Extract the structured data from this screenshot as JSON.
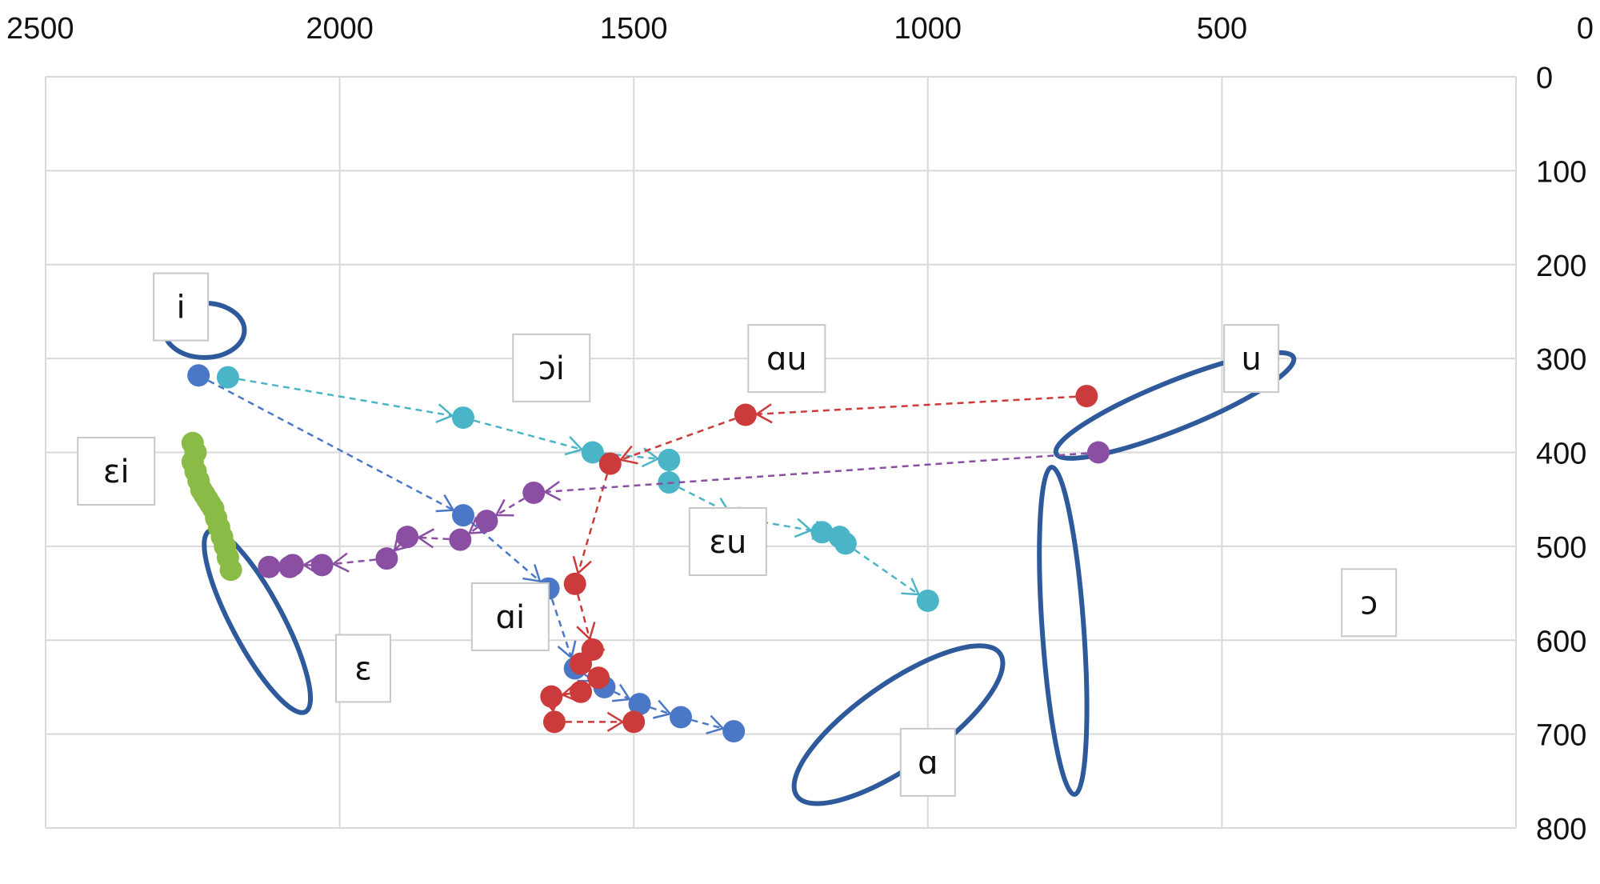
{
  "chart_data": {
    "type": "scatter",
    "title": "",
    "xlabel": "",
    "ylabel": "",
    "x_axis": {
      "position": "top",
      "reversed": true,
      "range": [
        0,
        2500
      ],
      "ticks": [
        2500,
        2000,
        1500,
        1000,
        500,
        0
      ]
    },
    "y_axis": {
      "position": "right",
      "reversed": true,
      "range": [
        0,
        800
      ],
      "ticks": [
        0,
        100,
        200,
        300,
        400,
        500,
        600,
        700,
        800
      ]
    },
    "grid": true,
    "legend": "none",
    "colors": {
      "ellipse": "#2e5a9c",
      "iE": "#8bbb47",
      "io": "#4bb5c8",
      "ia": "#4a78c7",
      "ua": "#cc3b3b",
      "uE": "#8a4fa3"
    },
    "vowel_targets": [
      {
        "name": "i",
        "x": 2230,
        "y": 270
      },
      {
        "name": "u",
        "x": 580,
        "y": 350
      },
      {
        "name": "ɛ",
        "x": 2140,
        "y": 580
      },
      {
        "name": "ɔ",
        "x": 770,
        "y": 590
      },
      {
        "name": "ɑ",
        "x": 1050,
        "y": 690
      }
    ],
    "labels": [
      {
        "text": "i",
        "x": 2270,
        "y": 245
      },
      {
        "text": "ɔi",
        "x": 1640,
        "y": 310
      },
      {
        "text": "ɑu",
        "x": 1240,
        "y": 300
      },
      {
        "text": "u",
        "x": 450,
        "y": 300
      },
      {
        "text": "ɛi",
        "x": 2380,
        "y": 420
      },
      {
        "text": "ɛu",
        "x": 1340,
        "y": 495
      },
      {
        "text": "ɔ",
        "x": 250,
        "y": 560
      },
      {
        "text": "ɑi",
        "x": 1710,
        "y": 575
      },
      {
        "text": "ɛ",
        "x": 1960,
        "y": 630
      },
      {
        "text": "ɑ",
        "x": 1000,
        "y": 730
      }
    ],
    "series": [
      {
        "key": "iE",
        "color_key": "iE",
        "points": [
          [
            2250,
            390
          ],
          [
            2245,
            400
          ],
          [
            2250,
            410
          ],
          [
            2245,
            420
          ],
          [
            2240,
            430
          ],
          [
            2235,
            440
          ],
          [
            2230,
            445
          ],
          [
            2225,
            450
          ],
          [
            2220,
            455
          ],
          [
            2215,
            460
          ],
          [
            2210,
            470
          ],
          [
            2205,
            480
          ],
          [
            2200,
            490
          ],
          [
            2195,
            500
          ],
          [
            2190,
            512
          ],
          [
            2185,
            525
          ]
        ]
      },
      {
        "key": "io",
        "color_key": "io",
        "points": [
          [
            2190,
            320
          ],
          [
            1790,
            363
          ],
          [
            1570,
            400
          ],
          [
            1440,
            408
          ],
          [
            1440,
            432
          ],
          [
            1320,
            470
          ],
          [
            1180,
            485
          ],
          [
            1150,
            490
          ],
          [
            1140,
            497
          ],
          [
            1000,
            558
          ]
        ]
      },
      {
        "key": "ia",
        "color_key": "ia",
        "points": [
          [
            2240,
            318
          ],
          [
            1790,
            467
          ],
          [
            1645,
            545
          ],
          [
            1600,
            630
          ],
          [
            1550,
            650
          ],
          [
            1490,
            668
          ],
          [
            1420,
            682
          ],
          [
            1330,
            697
          ]
        ]
      },
      {
        "key": "ua",
        "color_key": "ua",
        "points": [
          [
            730,
            340
          ],
          [
            1310,
            360
          ],
          [
            1540,
            412
          ],
          [
            1600,
            540
          ],
          [
            1570,
            610
          ],
          [
            1590,
            625
          ],
          [
            1560,
            640
          ],
          [
            1590,
            655
          ],
          [
            1640,
            660
          ],
          [
            1635,
            687
          ],
          [
            1500,
            687
          ]
        ]
      },
      {
        "key": "uE",
        "color_key": "uE",
        "points": [
          [
            710,
            400
          ],
          [
            1670,
            443
          ],
          [
            1750,
            473
          ],
          [
            1795,
            493
          ],
          [
            1885,
            490
          ],
          [
            1920,
            513
          ],
          [
            2030,
            520
          ],
          [
            2080,
            520
          ],
          [
            2085,
            522
          ],
          [
            2120,
            522
          ]
        ]
      }
    ]
  }
}
